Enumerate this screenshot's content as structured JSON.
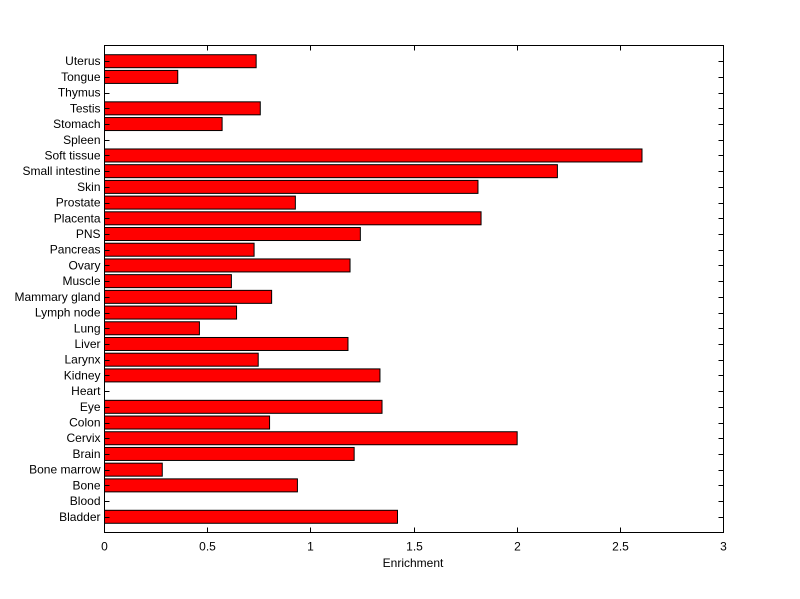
{
  "chart_data": {
    "type": "bar",
    "orientation": "horizontal",
    "title": "",
    "xlabel": "Enrichment",
    "ylabel": "",
    "xlim": [
      0,
      3
    ],
    "xticks": [
      "0",
      "0.5",
      "1",
      "1.5",
      "2",
      "2.5",
      "3"
    ],
    "xtick_values": [
      0,
      0.5,
      1,
      1.5,
      2,
      2.5,
      3
    ],
    "grid": false,
    "bar_color": "#ff0000",
    "categories": [
      "Bladder",
      "Blood",
      "Bone",
      "Bone marrow",
      "Brain",
      "Cervix",
      "Colon",
      "Eye",
      "Heart",
      "Kidney",
      "Larynx",
      "Liver",
      "Lung",
      "Lymph node",
      "Mammary gland",
      "Muscle",
      "Ovary",
      "Pancreas",
      "PNS",
      "Placenta",
      "Prostate",
      "Skin",
      "Small intestine",
      "Soft tissue",
      "Spleen",
      "Stomach",
      "Testis",
      "Thymus",
      "Tongue",
      "Uterus"
    ],
    "values": [
      1.42,
      0,
      0.935,
      0.28,
      1.21,
      2.0,
      0.8,
      1.345,
      0,
      1.335,
      0.745,
      1.18,
      0.46,
      0.64,
      0.81,
      0.615,
      1.19,
      0.725,
      1.24,
      1.825,
      0.925,
      1.81,
      2.195,
      2.605,
      0,
      0.57,
      0.755,
      0,
      0.355,
      0.735
    ]
  }
}
